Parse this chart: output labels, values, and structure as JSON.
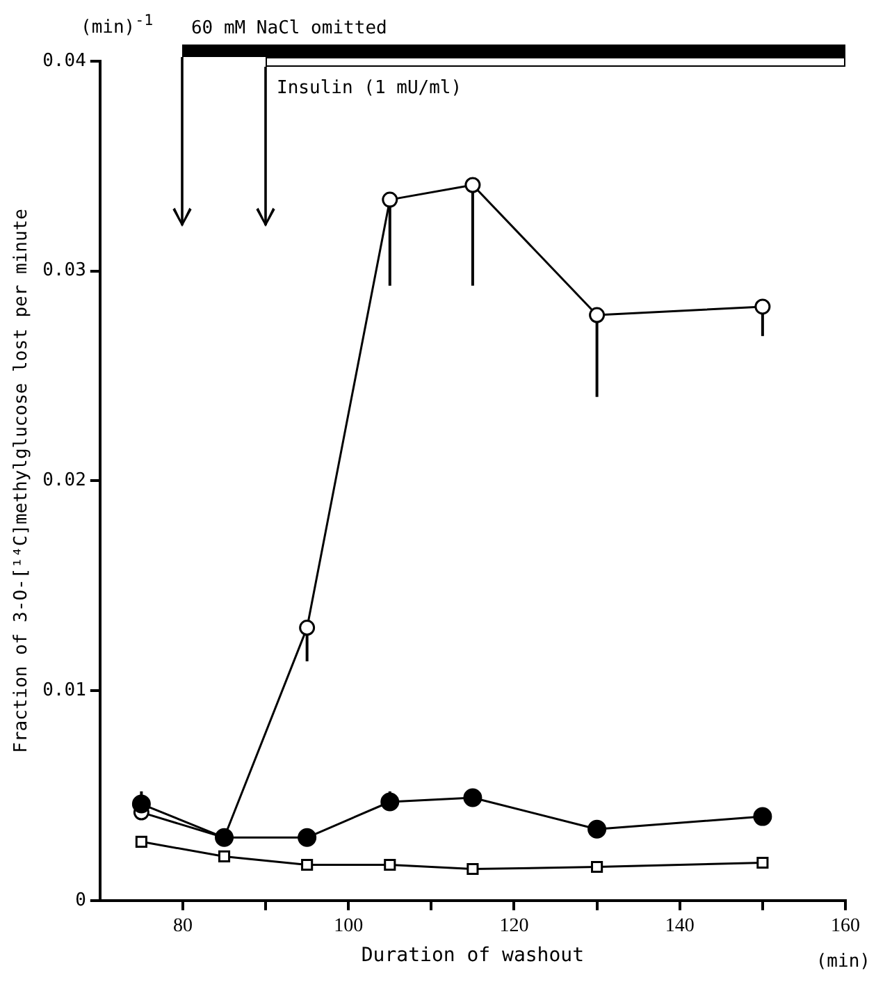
{
  "chart_data": {
    "type": "line",
    "xlabel": "Duration of washout",
    "ylabel": "Fraction of 3-O-[¹⁴C]methylglucose lost per minute",
    "x": [
      75,
      85,
      95,
      105,
      115,
      130,
      150
    ],
    "xlim": [
      70,
      160
    ],
    "xticks": [
      80,
      {
        "value": 90,
        "label": null
      },
      100,
      {
        "value": 110,
        "label": null
      },
      120,
      {
        "value": 130,
        "label": null
      },
      140,
      {
        "value": 150,
        "label": null
      },
      160
    ],
    "ylim": [
      0,
      0.04
    ],
    "yticks": [
      0,
      0.01,
      0.02,
      0.03,
      0.04
    ],
    "grid": false,
    "legend": false,
    "line_style": "solid",
    "series": [
      {
        "color": "#000000",
        "colors": [
          "#ffffff",
          "#ffffff",
          "#ffffff",
          "#ffffff",
          "#ffffff",
          "#ffffff",
          "#ffffff"
        ],
        "marker": "circle",
        "values": [
          0.0042,
          0.003,
          0.013,
          0.0334,
          0.0341,
          0.0279,
          0.0283
        ],
        "errors": [
          null,
          null,
          [
            0.0114,
            0.013
          ],
          [
            0.0293,
            0.0334
          ],
          [
            0.0293,
            0.0341
          ],
          [
            0.024,
            0.0279
          ],
          [
            0.0269,
            0.0283
          ]
        ]
      },
      {
        "color": "#000000",
        "marker": "circle",
        "values": [
          0.0046,
          0.003,
          0.003,
          0.0047,
          0.0049,
          0.0034,
          0.004
        ],
        "errors": [
          [
            0.0046,
            0.0052
          ],
          null,
          null,
          [
            0.0047,
            0.0052
          ],
          null,
          null,
          null
        ]
      },
      {
        "color": "#000000",
        "colors": [
          "#ffffff",
          "#ffffff",
          "#ffffff",
          "#ffffff",
          "#ffffff",
          "#ffffff",
          "#ffffff"
        ],
        "marker": "square",
        "values": [
          0.0028,
          0.0021,
          0.0017,
          0.0017,
          0.0015,
          0.0016,
          0.0018
        ]
      }
    ],
    "ref_lines": [
      {
        "axis": "x",
        "value": 80,
        "label": "60 mM NaCl omitted"
      },
      {
        "axis": "x",
        "value": 90,
        "label": "Insulin (1 mU/ml)"
      }
    ],
    "annotations": [
      "(min)$^{-1}$",
      "(min)"
    ]
  }
}
